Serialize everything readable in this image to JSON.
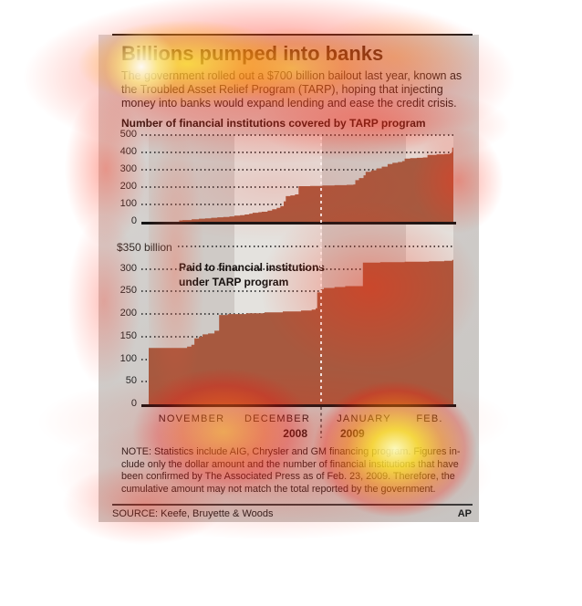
{
  "header": {
    "title": "Billions pumped into banks",
    "intro_lines": [
      "The government rolled out a $700 billion bailout last year, known as",
      "the Troubled Asset Relief Program (TARP), hoping that injecting",
      "money into banks would expand lending and ease the credit crisis."
    ]
  },
  "chart_data": [
    {
      "type": "area",
      "title": "Number of financial institutions covered by TARP program",
      "ylim": [
        0,
        500
      ],
      "ymax": 500,
      "yticks": [
        500,
        400,
        300,
        200,
        100,
        0
      ],
      "grid": "dotted",
      "x_range": "late October 2008 to Feb. 23, 2009 (fraction of timeline)",
      "series": [
        {
          "name": "Institutions covered by TARP",
          "points": [
            [
              0.0,
              0
            ],
            [
              0.098,
              0
            ],
            [
              0.1,
              8
            ],
            [
              0.111,
              10
            ],
            [
              0.141,
              14
            ],
            [
              0.165,
              18
            ],
            [
              0.185,
              20
            ],
            [
              0.205,
              23
            ],
            [
              0.225,
              26
            ],
            [
              0.245,
              28
            ],
            [
              0.265,
              31
            ],
            [
              0.281,
              35
            ],
            [
              0.3,
              38
            ],
            [
              0.315,
              42
            ],
            [
              0.33,
              47
            ],
            [
              0.341,
              52
            ],
            [
              0.36,
              55
            ],
            [
              0.371,
              58
            ],
            [
              0.39,
              65
            ],
            [
              0.405,
              72
            ],
            [
              0.42,
              80
            ],
            [
              0.432,
              90
            ],
            [
              0.443,
              118
            ],
            [
              0.45,
              148
            ],
            [
              0.465,
              152
            ],
            [
              0.48,
              158
            ],
            [
              0.492,
              205
            ],
            [
              0.53,
              207
            ],
            [
              0.57,
              209
            ],
            [
              0.61,
              211
            ],
            [
              0.65,
              213
            ],
            [
              0.672,
              215
            ],
            [
              0.678,
              240
            ],
            [
              0.69,
              252
            ],
            [
              0.705,
              268
            ],
            [
              0.712,
              288
            ],
            [
              0.73,
              297
            ],
            [
              0.748,
              308
            ],
            [
              0.765,
              318
            ],
            [
              0.784,
              333
            ],
            [
              0.8,
              340
            ],
            [
              0.818,
              345
            ],
            [
              0.832,
              350
            ],
            [
              0.84,
              364
            ],
            [
              0.858,
              367
            ],
            [
              0.88,
              369
            ],
            [
              0.9,
              371
            ],
            [
              0.915,
              386
            ],
            [
              0.945,
              389
            ],
            [
              0.97,
              391
            ],
            [
              0.988,
              394
            ],
            [
              0.993,
              400
            ],
            [
              0.996,
              428
            ],
            [
              1.0,
              430
            ]
          ]
        }
      ]
    },
    {
      "type": "area",
      "title": "Paid to financial institutions under TARP program",
      "ytop_label": "$350 billion",
      "label_lines": [
        "Paid to financial institutions",
        "under TARP program"
      ],
      "ylim": [
        0,
        350
      ],
      "ymax": 350,
      "yticks": [
        300,
        250,
        200,
        150,
        100,
        50,
        0
      ],
      "grid": "dotted",
      "x_range": "late October 2008 to Feb. 23, 2009 (fraction of timeline)",
      "series": [
        {
          "name": "$ billions paid under TARP",
          "points": [
            [
              0.0,
              125
            ],
            [
              0.12,
              125
            ],
            [
              0.126,
              128
            ],
            [
              0.14,
              132
            ],
            [
              0.15,
              146
            ],
            [
              0.165,
              150
            ],
            [
              0.177,
              155
            ],
            [
              0.195,
              157
            ],
            [
              0.216,
              163
            ],
            [
              0.231,
              198
            ],
            [
              0.26,
              200
            ],
            [
              0.32,
              202
            ],
            [
              0.38,
              204
            ],
            [
              0.44,
              206
            ],
            [
              0.5,
              208
            ],
            [
              0.535,
              210
            ],
            [
              0.548,
              213
            ],
            [
              0.553,
              248
            ],
            [
              0.565,
              255
            ],
            [
              0.575,
              258
            ],
            [
              0.61,
              260
            ],
            [
              0.645,
              262
            ],
            [
              0.7,
              262
            ],
            [
              0.703,
              314
            ],
            [
              0.76,
              315
            ],
            [
              0.84,
              316
            ],
            [
              0.92,
              317
            ],
            [
              0.97,
              318
            ],
            [
              0.996,
              320
            ],
            [
              1.0,
              320
            ]
          ]
        }
      ]
    }
  ],
  "xaxis": {
    "months": [
      "NOVEMBER",
      "DECEMBER",
      "JANUARY",
      "FEB."
    ],
    "years": [
      "2008",
      "2009"
    ]
  },
  "note": {
    "lines": [
      "NOTE: Statistics include AIG, Chrysler and GM financing program. Figures in-",
      "clude only the dollar amount and the number of financial institutions that have",
      "been confirmed by The Associated Press as of Feb. 23, 2009. Therefore, the",
      "cumulative amount may not match the total reported by the government."
    ]
  },
  "footer": {
    "source": "SOURCE: Keefe, Bruyette & Woods",
    "credit": "AP"
  },
  "colors": {
    "area_fill": "#a7593f",
    "card_bg": "#cfccc9",
    "band_light": "#e4e2de",
    "band_dark": "#cfcac6",
    "grid_dot": "#454545",
    "title_text": "#2a1712",
    "heat_red": "#ff2812",
    "heat_yellow": "#ffe13c"
  }
}
